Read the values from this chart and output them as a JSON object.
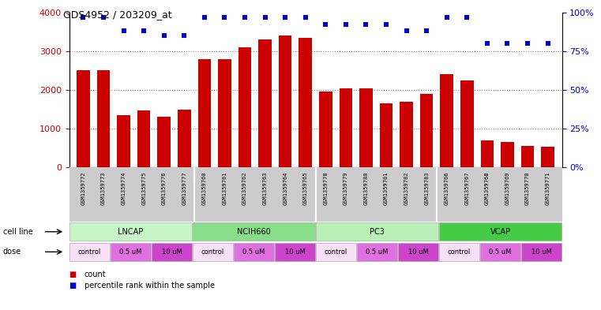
{
  "title": "GDS4952 / 203209_at",
  "samples": [
    "GSM1359772",
    "GSM1359773",
    "GSM1359774",
    "GSM1359775",
    "GSM1359776",
    "GSM1359777",
    "GSM1359760",
    "GSM1359761",
    "GSM1359762",
    "GSM1359763",
    "GSM1359764",
    "GSM1359765",
    "GSM1359778",
    "GSM1359779",
    "GSM1359780",
    "GSM1359781",
    "GSM1359782",
    "GSM1359783",
    "GSM1359766",
    "GSM1359767",
    "GSM1359768",
    "GSM1359769",
    "GSM1359770",
    "GSM1359771"
  ],
  "counts": [
    2500,
    2500,
    1350,
    1480,
    1300,
    1500,
    2800,
    2800,
    3100,
    3300,
    3400,
    3350,
    1950,
    2050,
    2050,
    1650,
    1700,
    1900,
    2400,
    2250,
    700,
    650,
    560,
    540
  ],
  "percentiles": [
    97,
    97,
    88,
    88,
    85,
    85,
    97,
    97,
    97,
    97,
    97,
    97,
    92,
    92,
    92,
    92,
    88,
    88,
    97,
    97,
    80,
    80,
    80,
    80
  ],
  "bar_color": "#cc0000",
  "dot_color": "#0000cc",
  "ylim_left": [
    0,
    4000
  ],
  "ylim_right": [
    0,
    100
  ],
  "yticks_left": [
    0,
    1000,
    2000,
    3000,
    4000
  ],
  "yticks_right": [
    0,
    25,
    50,
    75,
    100
  ],
  "cell_lines": [
    {
      "label": "LNCAP",
      "start": 0,
      "end": 6,
      "color": "#c8f5c8"
    },
    {
      "label": "NCIH660",
      "start": 6,
      "end": 12,
      "color": "#88dd88"
    },
    {
      "label": "PC3",
      "start": 12,
      "end": 18,
      "color": "#b8f0b8"
    },
    {
      "label": "VCAP",
      "start": 18,
      "end": 24,
      "color": "#44cc44"
    }
  ],
  "doses": [
    {
      "label": "control",
      "start": 0,
      "end": 2,
      "color": "#f8e0f8"
    },
    {
      "label": "0.5 uM",
      "start": 2,
      "end": 4,
      "color": "#e070e0"
    },
    {
      "label": "10 uM",
      "start": 4,
      "end": 6,
      "color": "#cc44cc"
    },
    {
      "label": "control",
      "start": 6,
      "end": 8,
      "color": "#f8e0f8"
    },
    {
      "label": "0.5 uM",
      "start": 8,
      "end": 10,
      "color": "#e070e0"
    },
    {
      "label": "10 uM",
      "start": 10,
      "end": 12,
      "color": "#cc44cc"
    },
    {
      "label": "control",
      "start": 12,
      "end": 14,
      "color": "#f8e0f8"
    },
    {
      "label": "0.5 uM",
      "start": 14,
      "end": 16,
      "color": "#e070e0"
    },
    {
      "label": "10 uM",
      "start": 16,
      "end": 18,
      "color": "#cc44cc"
    },
    {
      "label": "control",
      "start": 18,
      "end": 20,
      "color": "#f8e0f8"
    },
    {
      "label": "0.5 uM",
      "start": 20,
      "end": 22,
      "color": "#e070e0"
    },
    {
      "label": "10 uM",
      "start": 22,
      "end": 24,
      "color": "#cc44cc"
    }
  ],
  "grid_color": "#888888",
  "bg_color": "#ffffff",
  "label_color_left": "#cc0000",
  "label_color_right": "#0000cc",
  "sample_bg_color": "#cccccc"
}
